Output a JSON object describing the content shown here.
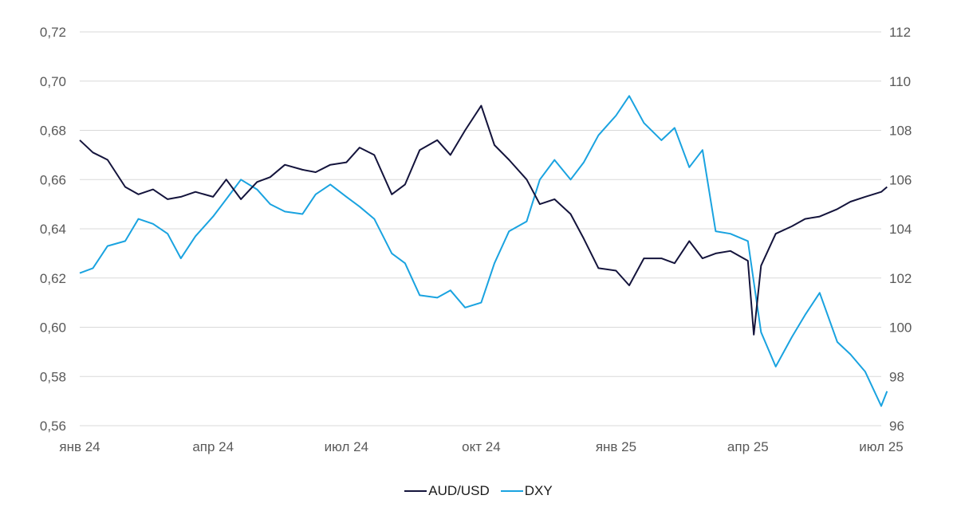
{
  "chart_data": {
    "type": "line",
    "x_labels": [
      "янв 24",
      "апр 24",
      "июл 24",
      "окт 24",
      "янв 25",
      "апр 25",
      "июл 25"
    ],
    "x_label_dates": [
      "2024-01",
      "2024-04",
      "2024-07",
      "2024-10",
      "2025-01",
      "2025-04",
      "2025-07"
    ],
    "xlim": [
      "2024-01",
      "2025-07"
    ],
    "y_left": {
      "ticks": [
        "0,72",
        "0,70",
        "0,68",
        "0,66",
        "0,64",
        "0,62",
        "0,60",
        "0,58",
        "0,56"
      ],
      "ylim": [
        0.56,
        0.72
      ]
    },
    "y_right": {
      "ticks": [
        "112",
        "110",
        "108",
        "106",
        "104",
        "102",
        "100",
        "98",
        "96"
      ],
      "ylim": [
        96,
        112
      ]
    },
    "grid": true,
    "legend": "bottom-center",
    "series": [
      {
        "name": "AUD/USD",
        "axis": "left",
        "color": "#14143c",
        "points": [
          [
            "2024-01",
            0.676
          ],
          [
            "2024-01-10",
            0.671
          ],
          [
            "2024-01-20",
            0.668
          ],
          [
            "2024-02",
            0.657
          ],
          [
            "2024-02-10",
            0.654
          ],
          [
            "2024-02-20",
            0.656
          ],
          [
            "2024-03",
            0.652
          ],
          [
            "2024-03-10",
            0.653
          ],
          [
            "2024-03-20",
            0.655
          ],
          [
            "2024-04",
            0.653
          ],
          [
            "2024-04-10",
            0.66
          ],
          [
            "2024-04-20",
            0.652
          ],
          [
            "2024-05",
            0.659
          ],
          [
            "2024-05-10",
            0.661
          ],
          [
            "2024-05-20",
            0.666
          ],
          [
            "2024-06",
            0.664
          ],
          [
            "2024-06-10",
            0.663
          ],
          [
            "2024-06-20",
            0.666
          ],
          [
            "2024-07",
            0.667
          ],
          [
            "2024-07-10",
            0.673
          ],
          [
            "2024-07-20",
            0.67
          ],
          [
            "2024-08",
            0.654
          ],
          [
            "2024-08-10",
            0.658
          ],
          [
            "2024-08-20",
            0.672
          ],
          [
            "2024-09",
            0.676
          ],
          [
            "2024-09-10",
            0.67
          ],
          [
            "2024-09-20",
            0.68
          ],
          [
            "2024-10",
            0.69
          ],
          [
            "2024-10-10",
            0.674
          ],
          [
            "2024-10-20",
            0.668
          ],
          [
            "2024-11",
            0.66
          ],
          [
            "2024-11-10",
            0.65
          ],
          [
            "2024-11-20",
            0.652
          ],
          [
            "2024-12",
            0.646
          ],
          [
            "2024-12-10",
            0.636
          ],
          [
            "2024-12-20",
            0.624
          ],
          [
            "2025-01",
            0.623
          ],
          [
            "2025-01-10",
            0.617
          ],
          [
            "2025-01-20",
            0.628
          ],
          [
            "2025-02",
            0.628
          ],
          [
            "2025-02-10",
            0.626
          ],
          [
            "2025-02-20",
            0.635
          ],
          [
            "2025-03",
            0.628
          ],
          [
            "2025-03-10",
            0.63
          ],
          [
            "2025-03-20",
            0.631
          ],
          [
            "2025-04",
            0.627
          ],
          [
            "2025-04-05",
            0.597
          ],
          [
            "2025-04-10",
            0.625
          ],
          [
            "2025-04-20",
            0.638
          ],
          [
            "2025-05",
            0.641
          ],
          [
            "2025-05-10",
            0.644
          ],
          [
            "2025-05-20",
            0.645
          ],
          [
            "2025-06",
            0.648
          ],
          [
            "2025-06-10",
            0.651
          ],
          [
            "2025-06-20",
            0.653
          ],
          [
            "2025-07",
            0.655
          ],
          [
            "2025-07-05",
            0.657
          ]
        ]
      },
      {
        "name": "DXY",
        "axis": "right",
        "color": "#1aa3e0",
        "points": [
          [
            "2024-01",
            102.2
          ],
          [
            "2024-01-10",
            102.4
          ],
          [
            "2024-01-20",
            103.3
          ],
          [
            "2024-02",
            103.5
          ],
          [
            "2024-02-10",
            104.4
          ],
          [
            "2024-02-20",
            104.2
          ],
          [
            "2024-03",
            103.8
          ],
          [
            "2024-03-10",
            102.8
          ],
          [
            "2024-03-20",
            103.7
          ],
          [
            "2024-04",
            104.5
          ],
          [
            "2024-04-10",
            105.2
          ],
          [
            "2024-04-20",
            106.0
          ],
          [
            "2024-05",
            105.6
          ],
          [
            "2024-05-10",
            105.0
          ],
          [
            "2024-05-20",
            104.7
          ],
          [
            "2024-06",
            104.6
          ],
          [
            "2024-06-10",
            105.4
          ],
          [
            "2024-06-20",
            105.8
          ],
          [
            "2024-07",
            105.3
          ],
          [
            "2024-07-10",
            104.9
          ],
          [
            "2024-07-20",
            104.4
          ],
          [
            "2024-08",
            103.0
          ],
          [
            "2024-08-10",
            102.6
          ],
          [
            "2024-08-20",
            101.3
          ],
          [
            "2024-09",
            101.2
          ],
          [
            "2024-09-10",
            101.5
          ],
          [
            "2024-09-20",
            100.8
          ],
          [
            "2024-10",
            101.0
          ],
          [
            "2024-10-10",
            102.6
          ],
          [
            "2024-10-20",
            103.9
          ],
          [
            "2024-11",
            104.3
          ],
          [
            "2024-11-10",
            106.0
          ],
          [
            "2024-11-20",
            106.8
          ],
          [
            "2024-12",
            106.0
          ],
          [
            "2024-12-10",
            106.7
          ],
          [
            "2024-12-20",
            107.8
          ],
          [
            "2025-01",
            108.6
          ],
          [
            "2025-01-10",
            109.4
          ],
          [
            "2025-01-20",
            108.3
          ],
          [
            "2025-02",
            107.6
          ],
          [
            "2025-02-10",
            108.1
          ],
          [
            "2025-02-20",
            106.5
          ],
          [
            "2025-03",
            107.2
          ],
          [
            "2025-03-10",
            103.9
          ],
          [
            "2025-03-20",
            103.8
          ],
          [
            "2025-04",
            103.5
          ],
          [
            "2025-04-10",
            99.8
          ],
          [
            "2025-04-20",
            98.4
          ],
          [
            "2025-05",
            99.6
          ],
          [
            "2025-05-10",
            100.5
          ],
          [
            "2025-05-20",
            101.4
          ],
          [
            "2025-06",
            99.4
          ],
          [
            "2025-06-10",
            98.9
          ],
          [
            "2025-06-20",
            98.2
          ],
          [
            "2025-07",
            96.8
          ],
          [
            "2025-07-05",
            97.4
          ]
        ]
      }
    ]
  }
}
